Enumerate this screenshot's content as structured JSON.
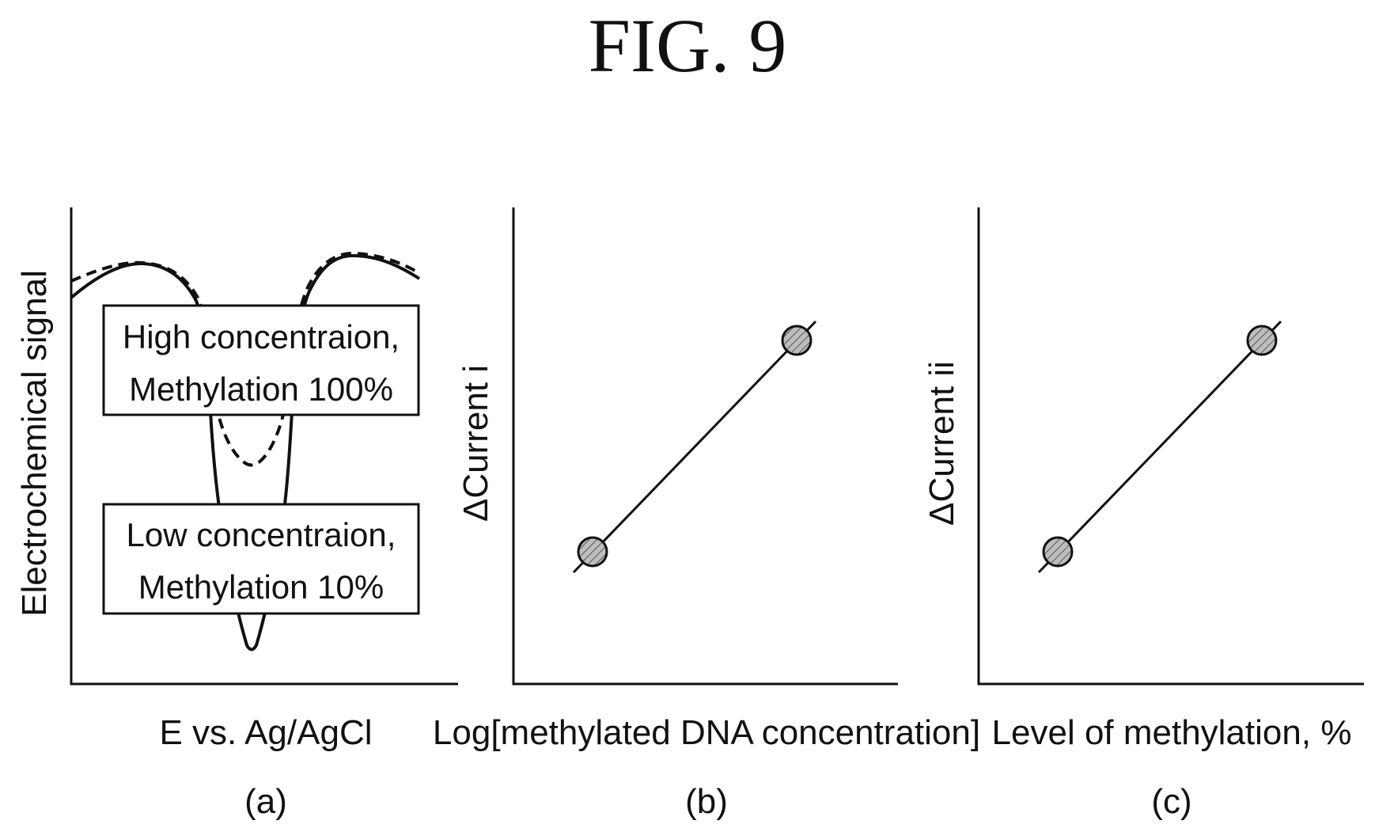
{
  "figure": {
    "title": "FIG. 9"
  },
  "panels": [
    {
      "id": "a",
      "caption": "(a)",
      "xlabel": "E vs. Ag/AgCl",
      "ylabel": "Electrochemical signal",
      "legend": [
        {
          "line1": "High concentraion,",
          "line2": "Methylation 100%",
          "style": "dashed"
        },
        {
          "line1": "Low concentraion,",
          "line2": "Methylation 10%",
          "style": "solid"
        }
      ]
    },
    {
      "id": "b",
      "caption": "(b)",
      "xlabel": "Log[methylated DNA concentration]",
      "ylabel": "ΔCurrent i"
    },
    {
      "id": "c",
      "caption": "(c)",
      "xlabel": "Level of methylation, %",
      "ylabel": "ΔCurrent ii"
    }
  ],
  "colors": {
    "ink": "#111111",
    "marker_fill": "#bdbdbd",
    "background": "#ffffff"
  }
}
